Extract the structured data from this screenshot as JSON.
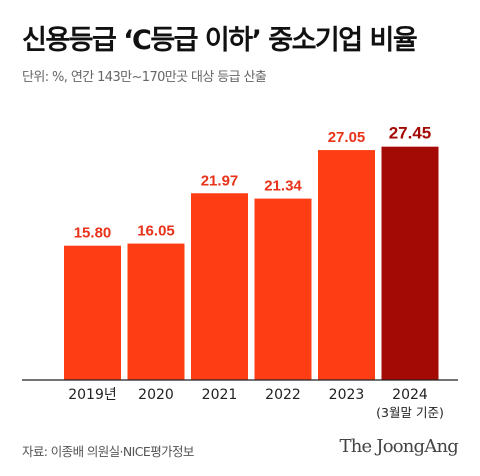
{
  "title": "신용등급 ‘C등급 이하’ 중소기업 비율",
  "subtitle": "단위: %, 연간 143만~170만곳 대상 등급 산출",
  "source": "자료: 이종배 의원실·NICE평가정보",
  "brand": "The JoongAng",
  "colors": {
    "bar": "#ff3d14",
    "bar_highlight": "#a30a05",
    "label": "#e8321a",
    "label_highlight": "#a30a05",
    "axis": "#222222"
  },
  "chart_data": {
    "type": "bar",
    "categories": [
      "2019년",
      "2020",
      "2021",
      "2022",
      "2023",
      "2024"
    ],
    "category_notes": [
      "",
      "",
      "",
      "",
      "",
      "(3월말 기준)"
    ],
    "values": [
      15.8,
      16.05,
      21.97,
      21.34,
      27.05,
      27.45
    ],
    "value_labels": [
      "15.80",
      "16.05",
      "21.97",
      "21.34",
      "27.05",
      "27.45"
    ],
    "highlight_index": 5,
    "title": "신용등급 ‘C등급 이하’ 중소기업 비율",
    "xlabel": "",
    "ylabel": "",
    "ylim": [
      0,
      30
    ],
    "grid": false,
    "legend": "none"
  }
}
